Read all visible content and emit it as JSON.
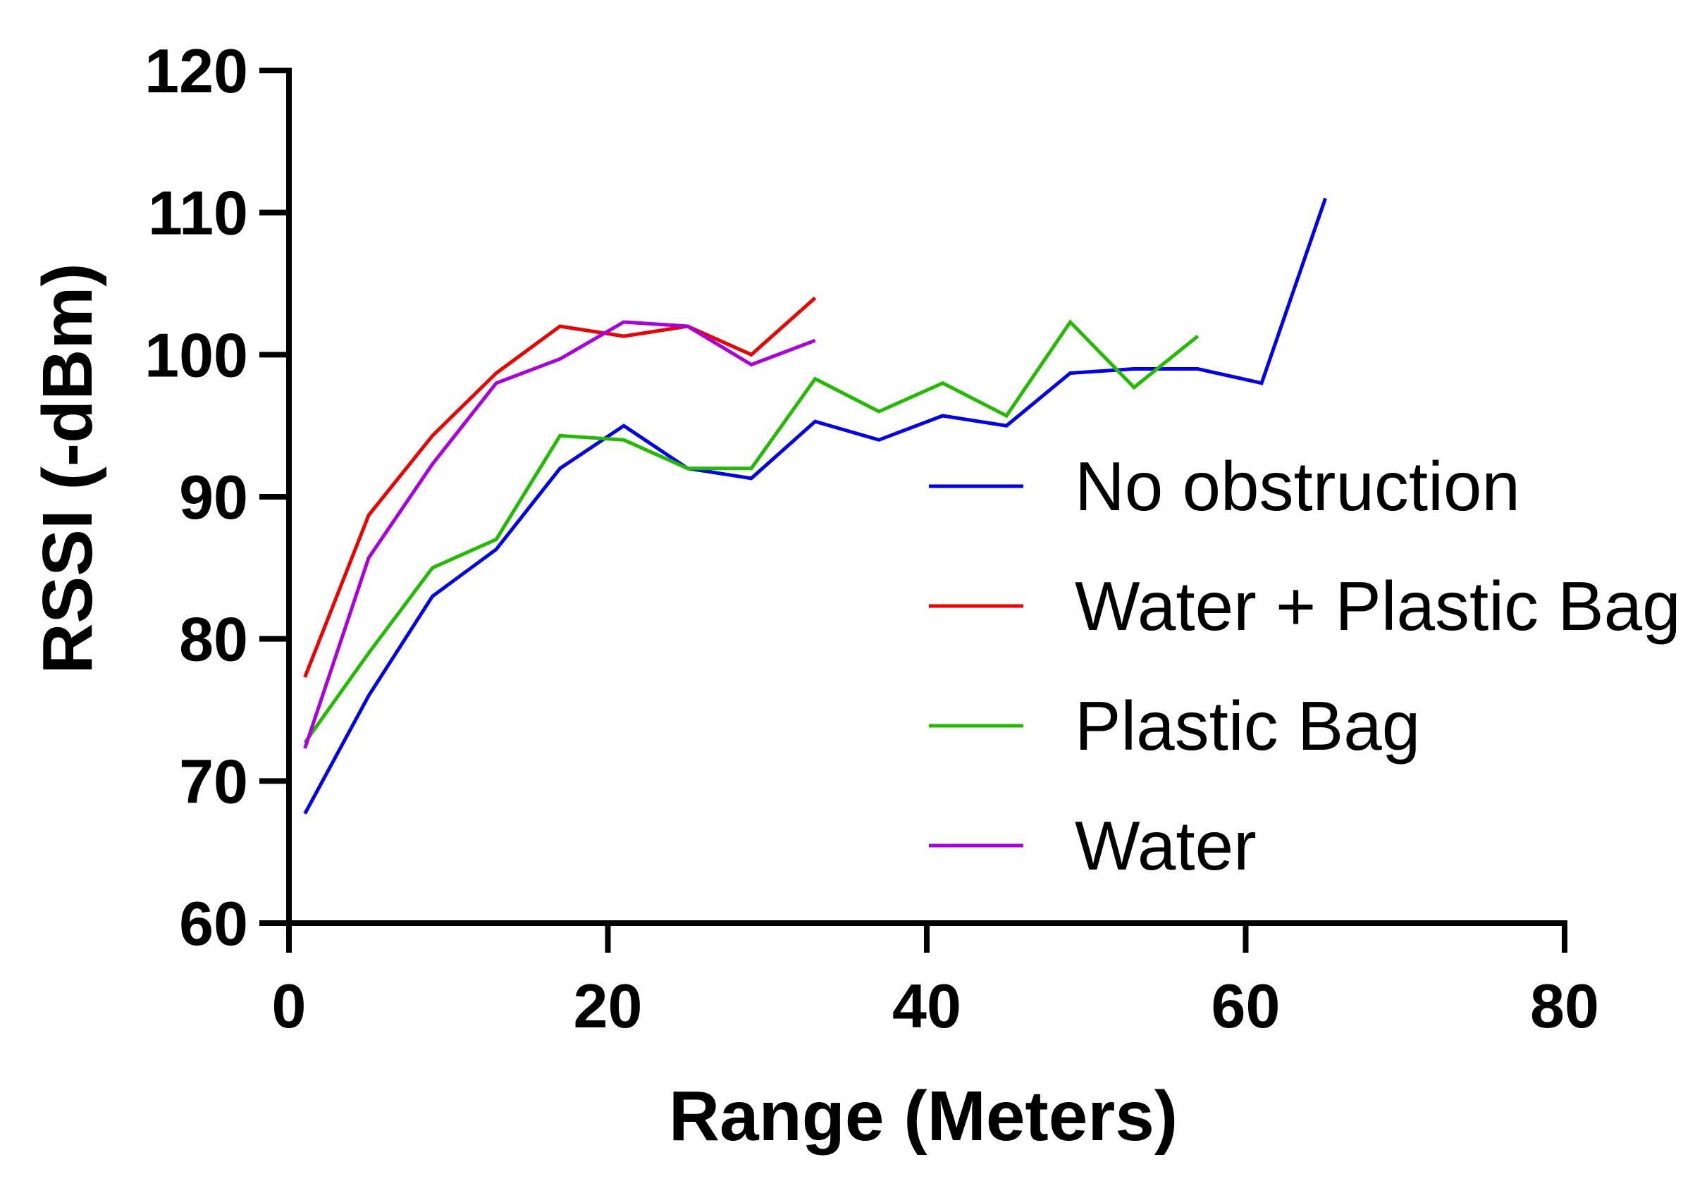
{
  "chart_data": {
    "type": "line",
    "xlabel": "Range (Meters)",
    "ylabel": "RSSI (-dBm)",
    "xlim": [
      0,
      80
    ],
    "ylim": [
      60,
      120
    ],
    "xticks": [
      0,
      20,
      40,
      60,
      80
    ],
    "yticks": [
      60,
      70,
      80,
      90,
      100,
      110,
      120
    ],
    "grid": false,
    "legend_position": "right",
    "series": [
      {
        "name": "No obstruction",
        "color": "#0000ee",
        "x": [
          1,
          5,
          9,
          13,
          17,
          21,
          25,
          29,
          33,
          37,
          41,
          45,
          49,
          53,
          57,
          61,
          65
        ],
        "y": [
          67.7,
          76,
          83,
          86.3,
          92,
          95,
          92,
          91.3,
          95.3,
          94,
          95.7,
          95,
          98.7,
          99,
          99,
          98,
          111
        ]
      },
      {
        "name": "Water + Plastic Bag",
        "color": "#ee0000",
        "x": [
          1,
          5,
          9,
          13,
          17,
          21,
          25,
          29,
          33
        ],
        "y": [
          77.3,
          88.7,
          94.3,
          98.7,
          102,
          101.3,
          102,
          100,
          104
        ]
      },
      {
        "name": "Plastic Bag",
        "color": "#22bb00",
        "x": [
          1,
          5,
          9,
          13,
          17,
          21,
          25,
          29,
          33,
          37,
          41,
          45,
          49,
          53,
          57
        ],
        "y": [
          72.7,
          79,
          85,
          87,
          94.3,
          94,
          92,
          92,
          98.3,
          96,
          98,
          95.7,
          102.3,
          97.7,
          101.3
        ]
      },
      {
        "name": "Water",
        "color": "#aa00dd",
        "x": [
          1,
          5,
          9,
          13,
          17,
          21,
          25,
          29,
          33
        ],
        "y": [
          72.3,
          85.7,
          92.3,
          98,
          99.7,
          102.3,
          102,
          99.3,
          101
        ]
      }
    ]
  }
}
